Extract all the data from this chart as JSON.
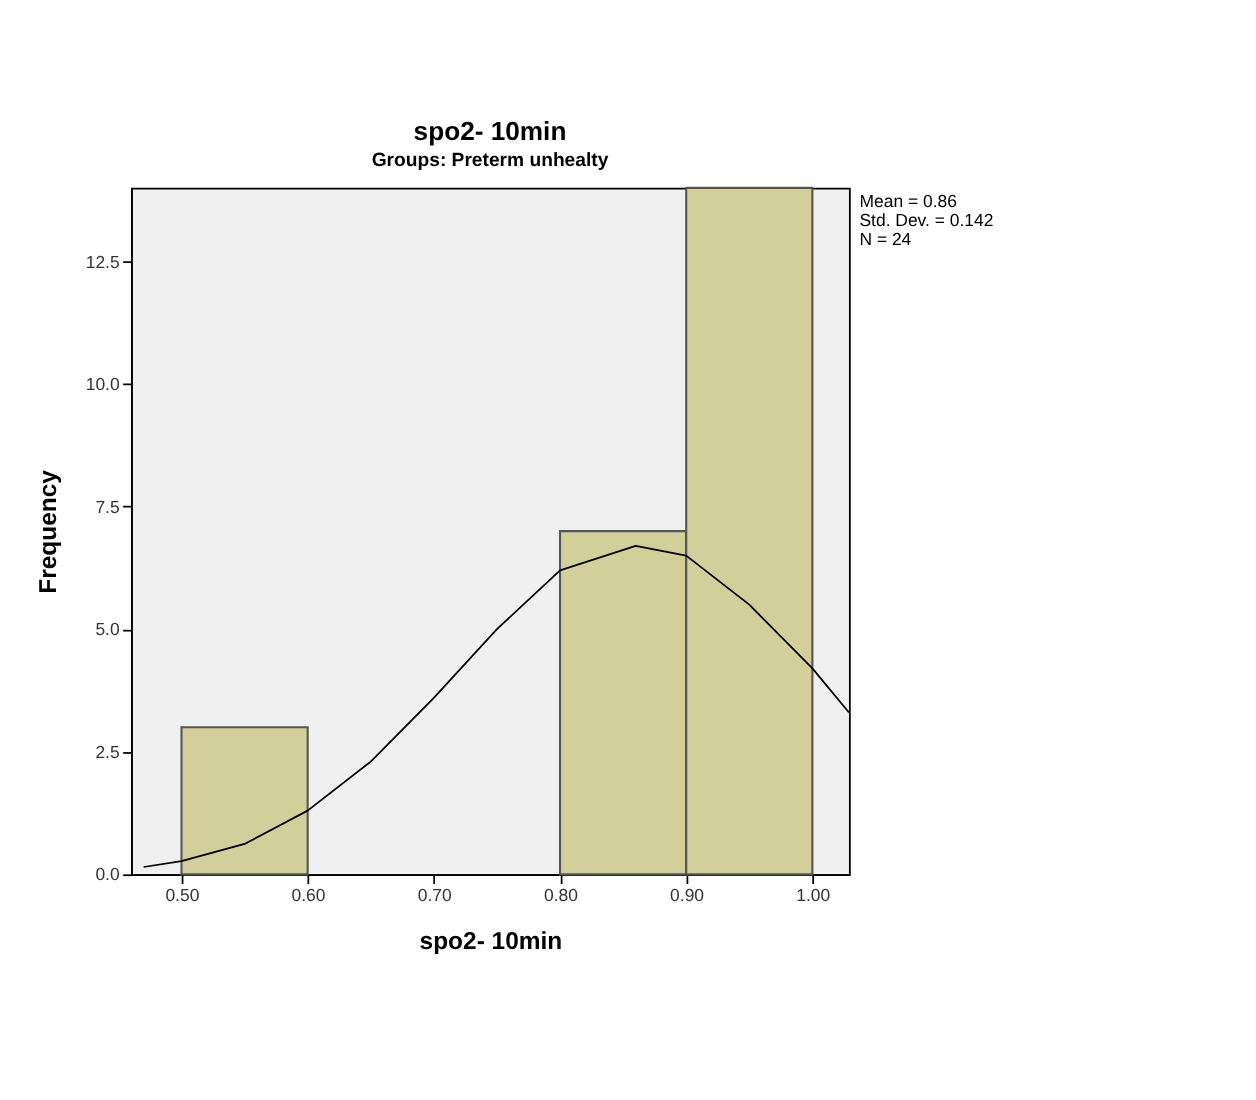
{
  "chart_data": {
    "type": "histogram",
    "title": "spo2- 10min",
    "subtitle": "Groups: Preterm unhealty",
    "xlabel": "spo2- 10min",
    "ylabel": "Frequency",
    "bins": [
      0.5,
      0.6,
      0.7,
      0.8,
      0.9,
      1.0
    ],
    "values": [
      3,
      0,
      0,
      7,
      14
    ],
    "color": "#d3cf9b",
    "series": [
      {
        "type": "line",
        "color": "#000000",
        "x": [
          0.47,
          0.5,
          0.55,
          0.6,
          0.65,
          0.7,
          0.75,
          0.8,
          0.86,
          0.9,
          0.95,
          1.0,
          1.029
        ],
        "values": [
          0.15,
          0.27,
          0.62,
          1.3,
          2.3,
          3.6,
          5.0,
          6.2,
          6.7,
          6.5,
          5.5,
          4.2,
          3.3
        ]
      }
    ],
    "xlim": [
      0.46,
      1.029
    ],
    "ylim": [
      0,
      14
    ],
    "xticks": [
      {
        "value": 0.5,
        "label": "0.50"
      },
      {
        "value": 0.6,
        "label": "0.60"
      },
      {
        "value": 0.7,
        "label": "0.70"
      },
      {
        "value": 0.8,
        "label": "0.80"
      },
      {
        "value": 0.9,
        "label": "0.90"
      },
      {
        "value": 1.0,
        "label": "1.00"
      }
    ],
    "yticks": [
      {
        "value": 0,
        "label": "0.0"
      },
      2.5,
      {
        "value": 5,
        "label": "5.0"
      },
      7.5,
      {
        "value": 10,
        "label": "10.0"
      },
      12.5
    ],
    "annotations": [
      "Mean = 0.86",
      "Std. Dev. = 0.142",
      "N = 24"
    ],
    "grid": false
  }
}
